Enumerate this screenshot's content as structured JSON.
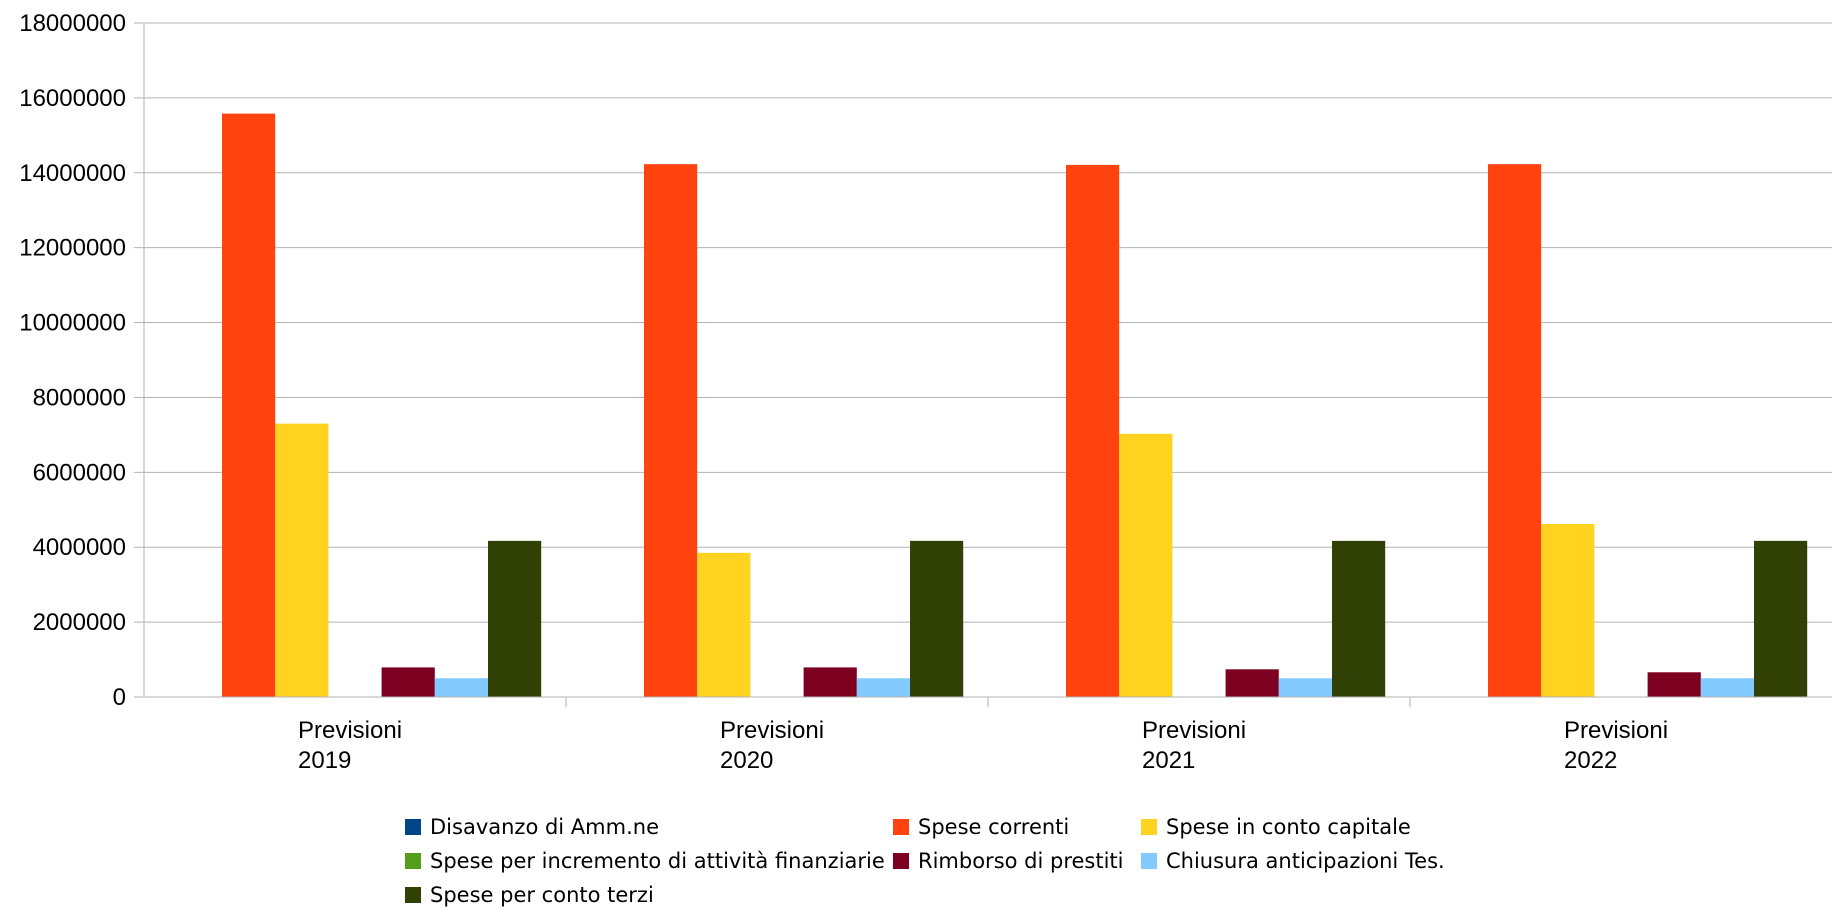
{
  "chart_data": {
    "type": "bar",
    "title": "",
    "xlabel": "",
    "ylabel": "",
    "categories": [
      [
        "Previsioni",
        "2019"
      ],
      [
        "Previsioni",
        "2020"
      ],
      [
        "Previsioni",
        "2021"
      ],
      [
        "Previsioni",
        "2022"
      ]
    ],
    "ylim": [
      0,
      18000000
    ],
    "yticks": [
      0,
      2000000,
      4000000,
      6000000,
      8000000,
      10000000,
      12000000,
      14000000,
      16000000,
      18000000
    ],
    "grid": true,
    "legend_position": "bottom",
    "series": [
      {
        "name": "Disavanzo di Amm.ne",
        "color": "#004586",
        "values": [
          0,
          0,
          0,
          0
        ]
      },
      {
        "name": "Spese correnti",
        "color": "#ff420e",
        "values": [
          15580000,
          14230000,
          14210000,
          14230000
        ]
      },
      {
        "name": "Spese in conto capitale",
        "color": "#ffd320",
        "values": [
          7300000,
          3850000,
          7030000,
          4620000
        ]
      },
      {
        "name": "Spese per incremento di attività finanziarie",
        "color": "#579d1c",
        "values": [
          0,
          0,
          0,
          0
        ]
      },
      {
        "name": "Rimborso di prestiti",
        "color": "#7e0021",
        "values": [
          790000,
          790000,
          740000,
          660000
        ]
      },
      {
        "name": " Chiusura anticipazioni Tes.",
        "color": "#83caff",
        "values": [
          500000,
          500000,
          500000,
          500000
        ]
      },
      {
        "name": "Spese per conto terzi",
        "color": "#314004",
        "values": [
          4170000,
          4170000,
          4170000,
          4170000
        ]
      }
    ]
  }
}
